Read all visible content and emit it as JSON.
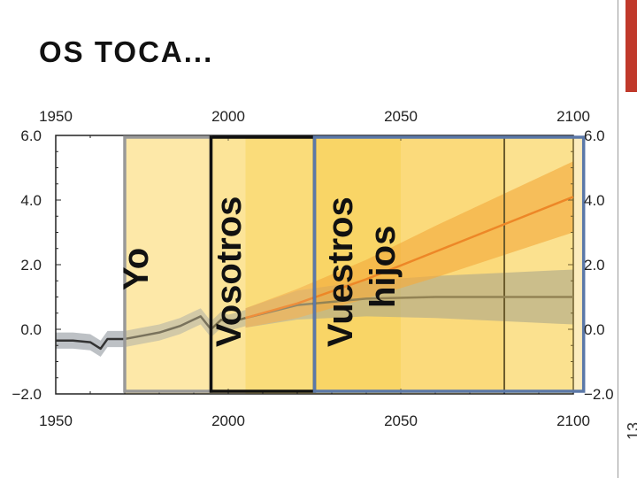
{
  "slide": {
    "title": "OS TOCA...",
    "page_number": "13",
    "accent_color": "#c0392b"
  },
  "generations": [
    {
      "label": "Yo",
      "start": 1970,
      "end": 1995,
      "border": "#999999",
      "fill": "#fde9a8"
    },
    {
      "label": "Vosotros",
      "start": 1995,
      "end": 2025,
      "border": "#111111",
      "fill": "#fadc7a"
    },
    {
      "label": "Vuestros hijos",
      "start": 2025,
      "end": 2103,
      "border": "#5b78a8",
      "fill": "#f5c842"
    }
  ],
  "chart_data": {
    "type": "line",
    "xlim": [
      1950,
      2100
    ],
    "ylim": [
      -2.0,
      6.0
    ],
    "x_ticks": [
      1950,
      2000,
      2050,
      2100
    ],
    "x_tick_labels": [
      "1950",
      "2000",
      "2050",
      "2100"
    ],
    "y_ticks": [
      -2.0,
      0.0,
      2.0,
      4.0,
      6.0
    ],
    "y_tick_labels": [
      "−2.0",
      "0.0",
      "2.0",
      "4.0",
      "6.0"
    ],
    "right_y_tick_labels": [
      "−2.0",
      "0.0",
      "2.0",
      "4.0",
      "6.0"
    ],
    "shaded_regions": [
      {
        "start": 1970,
        "end": 2005,
        "fill": "#fde9a8"
      },
      {
        "start": 2005,
        "end": 2050,
        "fill": "#fadc7a"
      },
      {
        "start": 2050,
        "end": 2080,
        "fill": "#fde39a"
      },
      {
        "start": 2080,
        "end": 2100,
        "fill": "#fdeeb8"
      }
    ],
    "vertical_lines": [
      2080
    ],
    "series": [
      {
        "color": "#333333",
        "band_color": "#9aa0a6",
        "x": [
          1950,
          1955,
          1960,
          1963,
          1965,
          1970,
          1975,
          1980,
          1983,
          1986,
          1990,
          1992,
          1995,
          1998,
          2000,
          2005
        ],
        "y": [
          -0.35,
          -0.35,
          -0.4,
          -0.6,
          -0.3,
          -0.3,
          -0.2,
          -0.1,
          0.0,
          0.1,
          0.3,
          0.4,
          0.0,
          0.3,
          0.2,
          0.35
        ],
        "lo": [
          -0.6,
          -0.6,
          -0.65,
          -0.85,
          -0.55,
          -0.55,
          -0.45,
          -0.35,
          -0.25,
          -0.15,
          0.05,
          0.15,
          -0.25,
          0.05,
          -0.05,
          0.1
        ],
        "hi": [
          -0.1,
          -0.1,
          -0.15,
          -0.35,
          -0.05,
          -0.05,
          0.05,
          0.15,
          0.25,
          0.35,
          0.55,
          0.65,
          0.25,
          0.55,
          0.45,
          0.6
        ]
      },
      {
        "color": "#5f5f5f",
        "band_color": "#8e9bb0",
        "x": [
          2005,
          2020,
          2040,
          2060,
          2080,
          2100
        ],
        "y": [
          0.35,
          0.75,
          0.95,
          1.0,
          1.0,
          1.0
        ],
        "lo": [
          0.05,
          0.3,
          0.4,
          0.35,
          0.25,
          0.15
        ],
        "hi": [
          0.65,
          1.2,
          1.5,
          1.65,
          1.75,
          1.85
        ]
      },
      {
        "color": "#e8651a",
        "band_color": "#f39c3d",
        "x": [
          2005,
          2020,
          2040,
          2060,
          2080,
          2100
        ],
        "y": [
          0.35,
          0.8,
          1.55,
          2.4,
          3.25,
          4.1
        ],
        "lo": [
          0.05,
          0.35,
          0.95,
          1.6,
          2.3,
          3.0
        ],
        "hi": [
          0.65,
          1.25,
          2.15,
          3.2,
          4.2,
          5.2
        ]
      }
    ]
  }
}
